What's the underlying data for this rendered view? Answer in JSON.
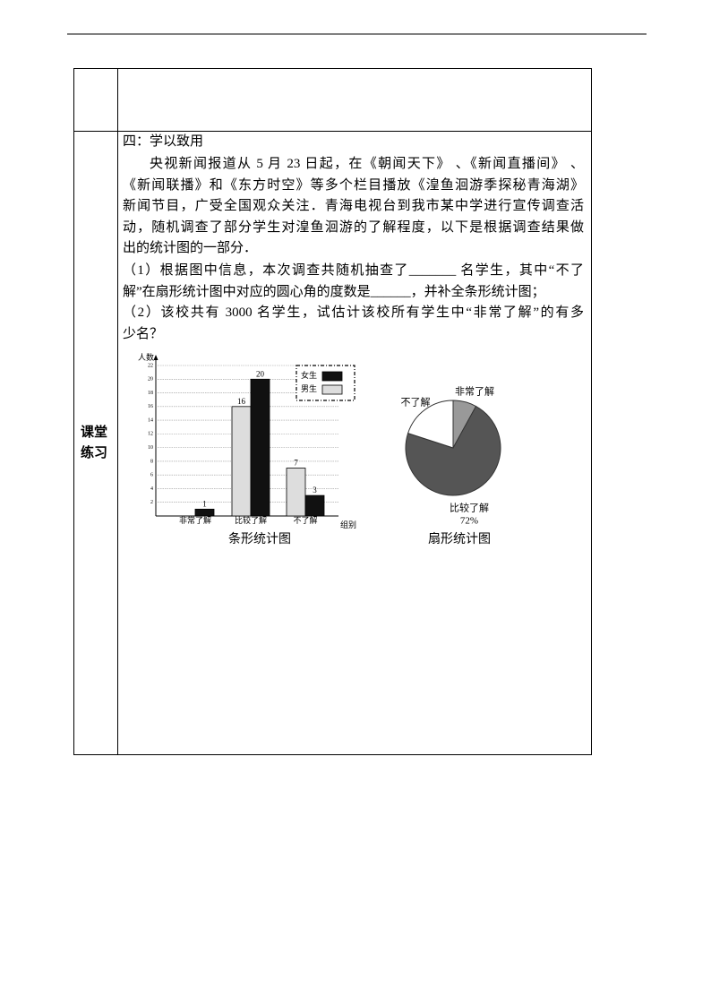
{
  "section_label": [
    "课堂",
    "练习"
  ],
  "heading": "四：学以致用",
  "paragraph_lines": [
    "央视新闻报道从 5 月 23 日起，在《朝闻天下》 、《新闻直播间》 、",
    "《新闻联播》和《东方时空》等多个栏目播放《湟鱼洄游季探秘青海湖》",
    "新闻节目，广受全国观众关注．青海电视台到我市某中学进行宣传调查活",
    "动，随机调查了部分学生对湟鱼洄游的了解程度，以下是根据调查结果做",
    "出的统计图的一部分．"
  ],
  "question_lines": [
    "（1）根据图中信息，本次调查共随机抽查了_______ 名学生，其中“不了",
    "解”在扇形统计图中对应的圆心角的度数是______，并补全条形统计图；",
    "（2）该校共有 3000 名学生，试估计该校所有学生中“非常了解”的有多",
    "少名？"
  ],
  "chart_data": [
    {
      "type": "bar",
      "y_label": "人数",
      "x_label": "组别",
      "caption": "条形统计图",
      "categories": [
        "非常了解",
        "比较了解",
        "不了解"
      ],
      "series": [
        {
          "name": "女生",
          "color": "#111111",
          "values": [
            1,
            20,
            3
          ]
        },
        {
          "name": "男生",
          "color": "#dddddd",
          "values": [
            null,
            16,
            7
          ]
        }
      ],
      "ylim": [
        0,
        22
      ],
      "yticks": [
        2,
        4,
        6,
        8,
        10,
        12,
        14,
        16,
        18,
        20,
        22
      ],
      "grid": true,
      "legend": "top-right"
    },
    {
      "type": "pie",
      "caption": "扇形统计图",
      "categories": [
        "非常了解",
        "比较了解",
        "不了解"
      ],
      "values": [
        8,
        72,
        20
      ],
      "value_labels": [
        null,
        "72%",
        null
      ],
      "colors": [
        "#999999",
        "#555555",
        "#ffffff"
      ]
    }
  ]
}
